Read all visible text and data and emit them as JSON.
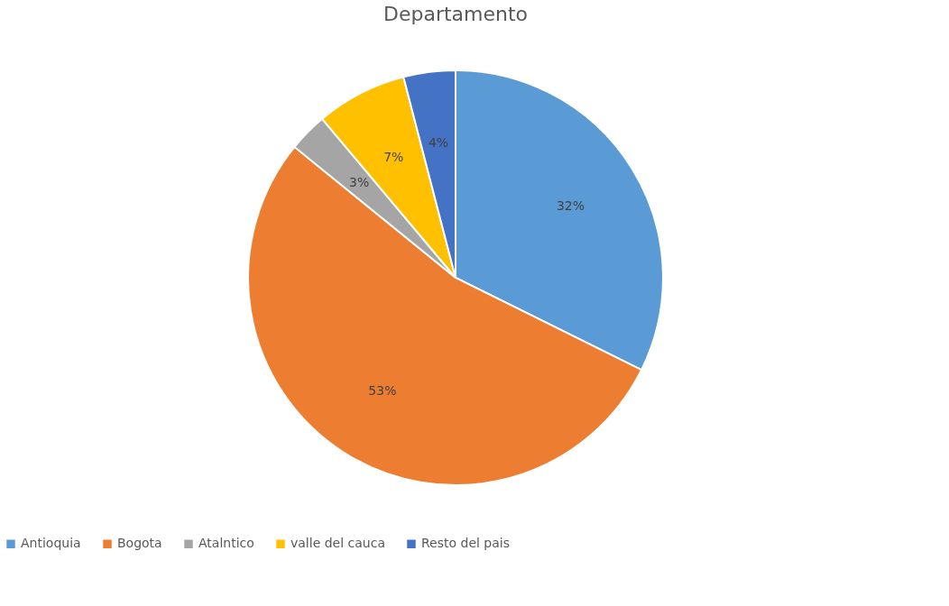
{
  "chart_data": {
    "type": "pie",
    "title": "Departamento",
    "categories": [
      "Antioquia",
      "Bogota",
      "Atalntico",
      "valle del cauca",
      "Resto del pais"
    ],
    "values": [
      32,
      53,
      3,
      7,
      4
    ],
    "colors": [
      "#5b9bd5",
      "#ed7d31",
      "#a5a5a5",
      "#ffc000",
      "#4472c4"
    ],
    "value_labels": [
      "32%",
      "53%",
      "3%",
      "7%",
      "4%"
    ],
    "legend": "bottom"
  }
}
